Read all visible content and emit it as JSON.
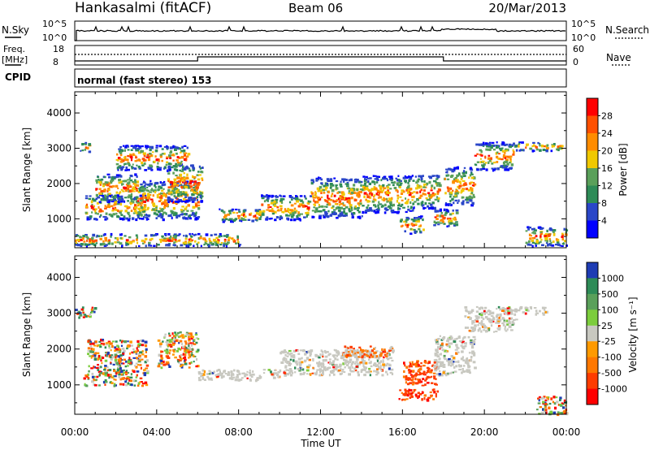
{
  "header": {
    "station": "Hankasalmi (fitACF)",
    "beam": "Beam 06",
    "date": "20/Mar/2013"
  },
  "strips": {
    "nsky_label": "N.Sky",
    "nsearch_label": "N.Search",
    "nsky_ticks": [
      "10^5",
      "10^0"
    ],
    "freq_label_1": "Freq.",
    "freq_label_2": "[MHz]",
    "freq_ticks": [
      "18",
      "8"
    ],
    "nave_label": "Nave",
    "nave_ticks": [
      "60",
      "0"
    ],
    "cpid_label": "CPID",
    "cpid_text": "normal (fast stereo) 153"
  },
  "chart_data": [
    {
      "type": "heatmap",
      "name": "power",
      "ylabel": "Slant Range [km]",
      "yticks": [
        1000,
        2000,
        3000,
        4000
      ],
      "ylim": [
        180,
        4600
      ],
      "xlim": [
        0,
        24
      ],
      "colorbar_label": "Power [dB]",
      "colorbar_ticks": [
        "4",
        "8",
        "12",
        "16",
        "20",
        "24",
        "28"
      ],
      "colorbar_colors": [
        "#0000ff",
        "#2a46c8",
        "#2e8b57",
        "#5aa05a",
        "#f0c800",
        "#ff8c00",
        "#ff5000",
        "#ff0000"
      ],
      "bands": [
        {
          "t0": 0.2,
          "t1": 0.7,
          "r0": 2900,
          "r1": 3200
        },
        {
          "t0": 0.5,
          "t1": 3.5,
          "r0": 1000,
          "r1": 1700
        },
        {
          "t0": 1.0,
          "t1": 3.0,
          "r0": 1500,
          "r1": 2300
        },
        {
          "t0": 3.0,
          "t1": 6.0,
          "r0": 1000,
          "r1": 2100
        },
        {
          "t0": 4.5,
          "t1": 6.2,
          "r0": 1500,
          "r1": 2600
        },
        {
          "t0": 2.0,
          "t1": 5.5,
          "r0": 2400,
          "r1": 3100
        },
        {
          "t0": 7.0,
          "t1": 9.0,
          "r0": 950,
          "r1": 1300
        },
        {
          "t0": 9.0,
          "t1": 11.5,
          "r0": 1000,
          "r1": 1700
        },
        {
          "t0": 11.5,
          "t1": 14.0,
          "r0": 1050,
          "r1": 2200
        },
        {
          "t0": 14.0,
          "t1": 16.5,
          "r0": 1200,
          "r1": 2250
        },
        {
          "t0": 15.8,
          "t1": 17.0,
          "r0": 600,
          "r1": 1100
        },
        {
          "t0": 16.5,
          "t1": 17.8,
          "r0": 1300,
          "r1": 2300
        },
        {
          "t0": 17.5,
          "t1": 18.6,
          "r0": 800,
          "r1": 1300
        },
        {
          "t0": 18.0,
          "t1": 19.5,
          "r0": 1400,
          "r1": 2500
        },
        {
          "t0": 19.5,
          "t1": 21.5,
          "r0": 2400,
          "r1": 3200
        },
        {
          "t0": 21.5,
          "t1": 23.8,
          "r0": 2950,
          "r1": 3200
        },
        {
          "t0": 22.0,
          "t1": 24.0,
          "r0": 250,
          "r1": 800
        },
        {
          "t0": 0.0,
          "t1": 8.0,
          "r0": 250,
          "r1": 600
        }
      ]
    },
    {
      "type": "heatmap",
      "name": "velocity",
      "xlabel": "Time UT",
      "ylabel": "Slant Range [km]",
      "xticks": [
        "00:00",
        "04:00",
        "08:00",
        "12:00",
        "16:00",
        "20:00",
        "00:00"
      ],
      "yticks": [
        1000,
        2000,
        3000,
        4000
      ],
      "ylim": [
        180,
        4600
      ],
      "xlim": [
        0,
        24
      ],
      "colorbar_label": "Velocity [m s⁻¹]",
      "colorbar_ticks": [
        "1000",
        "500",
        "100",
        "25",
        "-25",
        "-100",
        "-500",
        "-1000"
      ],
      "colorbar_colors": [
        "#1e3cb4",
        "#2e8b57",
        "#5aa05a",
        "#7ccd3c",
        "#c8c8c0",
        "#ff9a00",
        "#ff7800",
        "#ff3c00",
        "#ff0000"
      ],
      "bands": [
        {
          "t0": 0.3,
          "t1": 3.5,
          "r0": 1000,
          "r1": 1400
        },
        {
          "t0": 0.6,
          "t1": 3.5,
          "r0": 1400,
          "r1": 2300
        },
        {
          "t0": 4.0,
          "t1": 6.0,
          "r0": 1500,
          "r1": 2500
        },
        {
          "t0": 6.0,
          "t1": 10.0,
          "r0": 1150,
          "r1": 1450
        },
        {
          "t0": 10.0,
          "t1": 15.5,
          "r0": 1300,
          "r1": 2000
        },
        {
          "t0": 13.0,
          "t1": 15.5,
          "r0": 1800,
          "r1": 2100
        },
        {
          "t0": 16.0,
          "t1": 17.6,
          "r0": 1000,
          "r1": 1700
        },
        {
          "t0": 15.8,
          "t1": 17.8,
          "r0": 600,
          "r1": 900
        },
        {
          "t0": 17.5,
          "t1": 19.5,
          "r0": 1300,
          "r1": 2400
        },
        {
          "t0": 19.0,
          "t1": 21.5,
          "r0": 2500,
          "r1": 3200
        },
        {
          "t0": 21.0,
          "t1": 23.0,
          "r0": 3000,
          "r1": 3200
        },
        {
          "t0": 22.5,
          "t1": 24.0,
          "r0": 200,
          "r1": 700
        },
        {
          "t0": 0.0,
          "t1": 1.0,
          "r0": 2900,
          "r1": 3200
        }
      ]
    }
  ]
}
